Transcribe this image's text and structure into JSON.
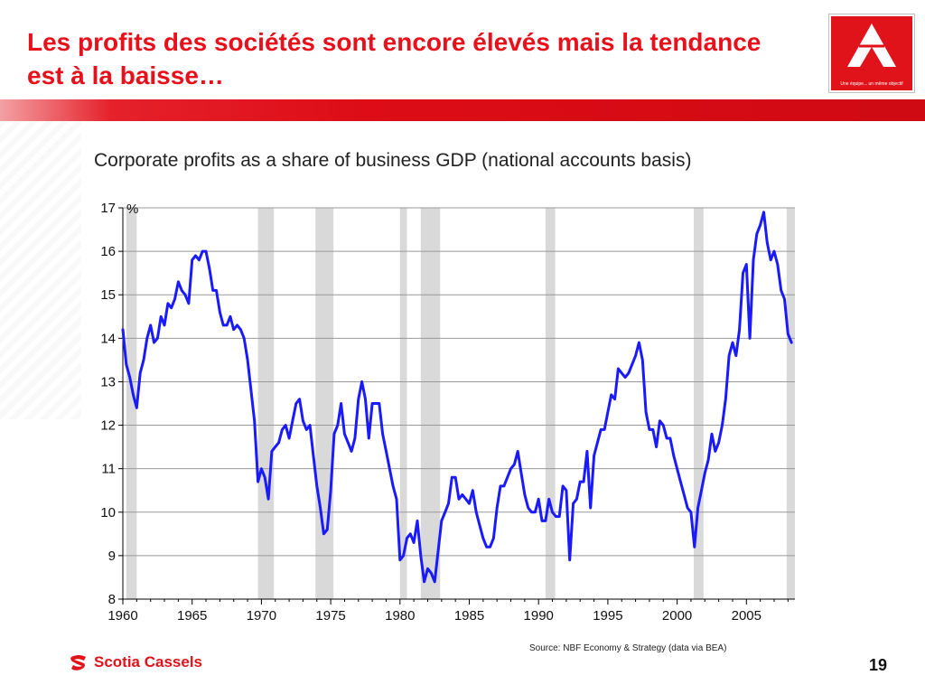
{
  "slide": {
    "title": "Les profits des sociétés sont encore élevés mais la tendance est à la baisse…",
    "page_number": "19",
    "tagline": "Une équipe... un même objectif",
    "source": "Source: NBF Economy & Strategy (data via BEA)"
  },
  "brand": {
    "name": "Scotia Cassels",
    "icon": "scotia-flame-icon"
  },
  "colors": {
    "accent_red": "#e0131b",
    "line_blue": "#1a1aff",
    "recession_gray": "#d9d9d9",
    "grid": "#999999"
  },
  "chart_data": {
    "type": "line",
    "title": "Corporate profits as a share of business GDP (national accounts basis)",
    "yunit": "%",
    "ylim": [
      8,
      17
    ],
    "xlim": [
      1960,
      2008.5
    ],
    "yticks": [
      8,
      9,
      10,
      11,
      12,
      13,
      14,
      15,
      16,
      17
    ],
    "xticks": [
      1960,
      1965,
      1970,
      1975,
      1980,
      1985,
      1990,
      1995,
      2000,
      2005
    ],
    "grid": "horizontal",
    "recessions": [
      [
        1960.25,
        1961.0
      ],
      [
        1969.75,
        1970.9
      ],
      [
        1973.9,
        1975.2
      ],
      [
        1980.0,
        1980.5
      ],
      [
        1981.5,
        1982.9
      ],
      [
        1990.5,
        1991.2
      ],
      [
        2001.2,
        2001.9
      ],
      [
        2007.9,
        2008.5
      ]
    ],
    "series": [
      {
        "x": [
          1960.0,
          1960.25,
          1960.5,
          1960.75,
          1961.0,
          1961.25,
          1961.5,
          1961.75,
          1962.0,
          1962.25,
          1962.5,
          1962.75,
          1963.0,
          1963.25,
          1963.5,
          1963.75,
          1964.0,
          1964.25,
          1964.5,
          1964.75,
          1965.0,
          1965.25,
          1965.5,
          1965.75,
          1966.0,
          1966.25,
          1966.5,
          1966.75,
          1967.0,
          1967.25,
          1967.5,
          1967.75,
          1968.0,
          1968.25,
          1968.5,
          1968.75,
          1969.0,
          1969.25,
          1969.5,
          1969.75,
          1970.0,
          1970.25,
          1970.5,
          1970.75,
          1971.0,
          1971.25,
          1971.5,
          1971.75,
          1972.0,
          1972.25,
          1972.5,
          1972.75,
          1973.0,
          1973.25,
          1973.5,
          1973.75,
          1974.0,
          1974.25,
          1974.5,
          1974.75,
          1975.0,
          1975.25,
          1975.5,
          1975.75,
          1976.0,
          1976.25,
          1976.5,
          1976.75,
          1977.0,
          1977.25,
          1977.5,
          1977.75,
          1978.0,
          1978.25,
          1978.5,
          1978.75,
          1979.0,
          1979.25,
          1979.5,
          1979.75,
          1980.0,
          1980.25,
          1980.5,
          1980.75,
          1981.0,
          1981.25,
          1981.5,
          1981.75,
          1982.0,
          1982.25,
          1982.5,
          1982.75,
          1983.0,
          1983.25,
          1983.5,
          1983.75,
          1984.0,
          1984.25,
          1984.5,
          1984.75,
          1985.0,
          1985.25,
          1985.5,
          1985.75,
          1986.0,
          1986.25,
          1986.5,
          1986.75,
          1987.0,
          1987.25,
          1987.5,
          1987.75,
          1988.0,
          1988.25,
          1988.5,
          1988.75,
          1989.0,
          1989.25,
          1989.5,
          1989.75,
          1990.0,
          1990.25,
          1990.5,
          1990.75,
          1991.0,
          1991.25,
          1991.5,
          1991.75,
          1992.0,
          1992.25,
          1992.5,
          1992.75,
          1993.0,
          1993.25,
          1993.5,
          1993.75,
          1994.0,
          1994.25,
          1994.5,
          1994.75,
          1995.0,
          1995.25,
          1995.5,
          1995.75,
          1996.0,
          1996.25,
          1996.5,
          1996.75,
          1997.0,
          1997.25,
          1997.5,
          1997.75,
          1998.0,
          1998.25,
          1998.5,
          1998.75,
          1999.0,
          1999.25,
          1999.5,
          1999.75,
          2000.0,
          2000.25,
          2000.5,
          2000.75,
          2001.0,
          2001.25,
          2001.5,
          2001.75,
          2002.0,
          2002.25,
          2002.5,
          2002.75,
          2003.0,
          2003.25,
          2003.5,
          2003.75,
          2004.0,
          2004.25,
          2004.5,
          2004.75,
          2005.0,
          2005.25,
          2005.5,
          2005.75,
          2006.0,
          2006.25,
          2006.5,
          2006.75,
          2007.0,
          2007.25,
          2007.5,
          2007.75,
          2008.0,
          2008.25
        ],
        "y": [
          14.2,
          13.4,
          13.1,
          12.7,
          12.4,
          13.2,
          13.5,
          14.0,
          14.3,
          13.9,
          14.0,
          14.5,
          14.3,
          14.8,
          14.7,
          14.9,
          15.3,
          15.1,
          15.0,
          14.8,
          15.8,
          15.9,
          15.8,
          16.0,
          16.0,
          15.6,
          15.1,
          15.1,
          14.6,
          14.3,
          14.3,
          14.5,
          14.2,
          14.3,
          14.2,
          14.0,
          13.5,
          12.8,
          12.1,
          10.7,
          11.0,
          10.8,
          10.3,
          11.4,
          11.5,
          11.6,
          11.9,
          12.0,
          11.7,
          12.1,
          12.5,
          12.6,
          12.1,
          11.9,
          12.0,
          11.3,
          10.6,
          10.1,
          9.5,
          9.6,
          10.5,
          11.8,
          12.0,
          12.5,
          11.8,
          11.6,
          11.4,
          11.7,
          12.6,
          13.0,
          12.6,
          11.7,
          12.5,
          12.5,
          12.5,
          11.8,
          11.4,
          11.0,
          10.6,
          10.3,
          8.9,
          9.0,
          9.4,
          9.5,
          9.3,
          9.8,
          9.0,
          8.4,
          8.7,
          8.6,
          8.4,
          9.1,
          9.8,
          10.0,
          10.2,
          10.8,
          10.8,
          10.3,
          10.4,
          10.3,
          10.2,
          10.5,
          10.0,
          9.7,
          9.4,
          9.2,
          9.2,
          9.4,
          10.1,
          10.6,
          10.6,
          10.8,
          11.0,
          11.1,
          11.4,
          10.9,
          10.4,
          10.1,
          10.0,
          10.0,
          10.3,
          9.8,
          9.8,
          10.3,
          10.0,
          9.9,
          9.9,
          10.6,
          10.5,
          8.9,
          10.2,
          10.3,
          10.7,
          10.7,
          11.4,
          10.1,
          11.3,
          11.6,
          11.9,
          11.9,
          12.3,
          12.7,
          12.6,
          13.3,
          13.2,
          13.1,
          13.2,
          13.4,
          13.6,
          13.9,
          13.5,
          12.3,
          11.9,
          11.9,
          11.5,
          12.1,
          12.0,
          11.7,
          11.7,
          11.3,
          11.0,
          10.7,
          10.4,
          10.1,
          10.0,
          9.2,
          10.1,
          10.5,
          10.9,
          11.2,
          11.8,
          11.4,
          11.6,
          12.0,
          12.6,
          13.6,
          13.9,
          13.6,
          14.2,
          15.5,
          15.7,
          14.0,
          15.8,
          16.4,
          16.6,
          16.9,
          16.2,
          15.8,
          16.0,
          15.7,
          15.1,
          14.9,
          14.1,
          13.9
        ]
      }
    ]
  }
}
